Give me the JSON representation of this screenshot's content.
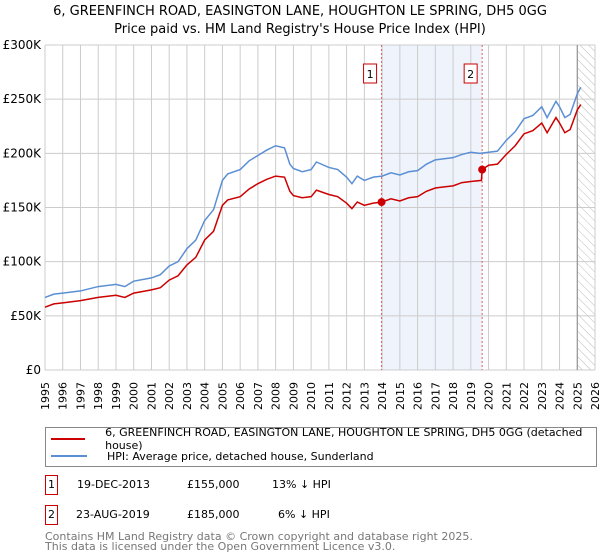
{
  "title": "6, GREENFINCH ROAD, EASINGTON LANE, HOUGHTON LE SPRING, DH5 0GG",
  "subtitle": "Price paid vs. HM Land Registry's House Price Index (HPI)",
  "legend": {
    "property": "6, GREENFINCH ROAD, EASINGTON LANE, HOUGHTON LE SPRING, DH5 0GG (detached house)",
    "hpi": "HPI: Average price, detached house, Sunderland"
  },
  "transactions": [
    {
      "num": "1",
      "date": "19-DEC-2013",
      "price": "£155,000",
      "hpi": "13% ↓ HPI"
    },
    {
      "num": "2",
      "date": "23-AUG-2019",
      "price": "£185,000",
      "hpi": "6% ↓ HPI"
    }
  ],
  "footer": [
    "Contains HM Land Registry data © Crown copyright and database right 2025.",
    "This data is licensed under the Open Government Licence v3.0."
  ],
  "chart_data": {
    "type": "line",
    "xlim": [
      1995,
      2026
    ],
    "ylim": [
      0,
      300000
    ],
    "yticks": [
      {
        "v": 0,
        "label": "£0"
      },
      {
        "v": 50000,
        "label": "£50K"
      },
      {
        "v": 100000,
        "label": "£100K"
      },
      {
        "v": 150000,
        "label": "£150K"
      },
      {
        "v": 200000,
        "label": "£200K"
      },
      {
        "v": 250000,
        "label": "£250K"
      },
      {
        "v": 300000,
        "label": "£300K"
      }
    ],
    "xticks": [
      "1995",
      "1996",
      "1997",
      "1998",
      "1999",
      "2000",
      "2001",
      "2002",
      "2003",
      "2004",
      "2005",
      "2006",
      "2007",
      "2008",
      "2009",
      "2010",
      "2011",
      "2012",
      "2013",
      "2014",
      "2015",
      "2016",
      "2017",
      "2018",
      "2019",
      "2020",
      "2021",
      "2022",
      "2023",
      "2024",
      "2025",
      "2026"
    ],
    "colors": {
      "property": "#cc0000",
      "hpi": "#5b8fd4",
      "band": "#eef3fc"
    },
    "shaded_range": [
      2013.97,
      2019.64
    ],
    "forecast_from": 2025.0,
    "sales": [
      {
        "label": "1",
        "x": 2013.97,
        "y": 155000
      },
      {
        "label": "2",
        "x": 2019.64,
        "y": 185000
      }
    ],
    "series": [
      {
        "name": "HPI: Average price, detached house, Sunderland",
        "points": [
          [
            1995,
            67
          ],
          [
            1995.5,
            70
          ],
          [
            1996,
            71
          ],
          [
            1997,
            73
          ],
          [
            1998,
            77
          ],
          [
            1999,
            79
          ],
          [
            1999.5,
            77
          ],
          [
            2000,
            82
          ],
          [
            2001,
            85
          ],
          [
            2001.5,
            88
          ],
          [
            2002,
            96
          ],
          [
            2002.5,
            100
          ],
          [
            2003,
            112
          ],
          [
            2003.5,
            120
          ],
          [
            2004,
            138
          ],
          [
            2004.5,
            148
          ],
          [
            2005,
            175
          ],
          [
            2005.3,
            181
          ],
          [
            2006,
            185
          ],
          [
            2006.5,
            193
          ],
          [
            2007,
            198
          ],
          [
            2007.5,
            203
          ],
          [
            2008,
            207
          ],
          [
            2008.5,
            205
          ],
          [
            2008.8,
            190
          ],
          [
            2009,
            186
          ],
          [
            2009.5,
            183
          ],
          [
            2010,
            185
          ],
          [
            2010.3,
            192
          ],
          [
            2011,
            187
          ],
          [
            2011.5,
            185
          ],
          [
            2012,
            178
          ],
          [
            2012.3,
            172
          ],
          [
            2012.6,
            179
          ],
          [
            2013,
            175
          ],
          [
            2013.5,
            178
          ],
          [
            2014,
            179
          ],
          [
            2014.5,
            182
          ],
          [
            2015,
            180
          ],
          [
            2015.5,
            183
          ],
          [
            2016,
            184
          ],
          [
            2016.5,
            190
          ],
          [
            2017,
            194
          ],
          [
            2017.5,
            195
          ],
          [
            2018,
            196
          ],
          [
            2018.5,
            199
          ],
          [
            2019,
            201
          ],
          [
            2019.5,
            200
          ],
          [
            2020,
            201
          ],
          [
            2020.5,
            202
          ],
          [
            2021,
            212
          ],
          [
            2021.5,
            220
          ],
          [
            2022,
            232
          ],
          [
            2022.5,
            235
          ],
          [
            2023,
            243
          ],
          [
            2023.3,
            233
          ],
          [
            2023.8,
            248
          ],
          [
            2024,
            243
          ],
          [
            2024.3,
            233
          ],
          [
            2024.6,
            236
          ],
          [
            2025,
            255
          ],
          [
            2025.2,
            261
          ]
        ]
      },
      {
        "name": "6, GREENFINCH ROAD (detached house)",
        "points": [
          [
            1995,
            58
          ],
          [
            1995.5,
            61
          ],
          [
            1996,
            62
          ],
          [
            1997,
            64
          ],
          [
            1998,
            67
          ],
          [
            1999,
            69
          ],
          [
            1999.5,
            67
          ],
          [
            2000,
            71
          ],
          [
            2001,
            74
          ],
          [
            2001.5,
            76
          ],
          [
            2002,
            83
          ],
          [
            2002.5,
            87
          ],
          [
            2003,
            97
          ],
          [
            2003.5,
            104
          ],
          [
            2004,
            120
          ],
          [
            2004.5,
            128
          ],
          [
            2005,
            152
          ],
          [
            2005.3,
            157
          ],
          [
            2006,
            160
          ],
          [
            2006.5,
            167
          ],
          [
            2007,
            172
          ],
          [
            2007.5,
            176
          ],
          [
            2008,
            179
          ],
          [
            2008.5,
            178
          ],
          [
            2008.8,
            165
          ],
          [
            2009,
            161
          ],
          [
            2009.5,
            159
          ],
          [
            2010,
            160
          ],
          [
            2010.3,
            166
          ],
          [
            2011,
            162
          ],
          [
            2011.5,
            160
          ],
          [
            2012,
            154
          ],
          [
            2012.3,
            149
          ],
          [
            2012.6,
            155
          ],
          [
            2013,
            152
          ],
          [
            2013.5,
            154
          ],
          [
            2013.97,
            155
          ],
          [
            2014.5,
            158
          ],
          [
            2015,
            156
          ],
          [
            2015.5,
            159
          ],
          [
            2016,
            160
          ],
          [
            2016.5,
            165
          ],
          [
            2017,
            168
          ],
          [
            2017.5,
            169
          ],
          [
            2018,
            170
          ],
          [
            2018.5,
            173
          ],
          [
            2019,
            174
          ],
          [
            2019.6,
            175
          ],
          [
            2019.64,
            185
          ],
          [
            2020,
            189
          ],
          [
            2020.5,
            190
          ],
          [
            2021,
            199
          ],
          [
            2021.5,
            207
          ],
          [
            2022,
            218
          ],
          [
            2022.5,
            221
          ],
          [
            2023,
            228
          ],
          [
            2023.3,
            219
          ],
          [
            2023.8,
            233
          ],
          [
            2024,
            228
          ],
          [
            2024.3,
            219
          ],
          [
            2024.6,
            222
          ],
          [
            2025,
            240
          ],
          [
            2025.2,
            245
          ]
        ]
      }
    ]
  }
}
